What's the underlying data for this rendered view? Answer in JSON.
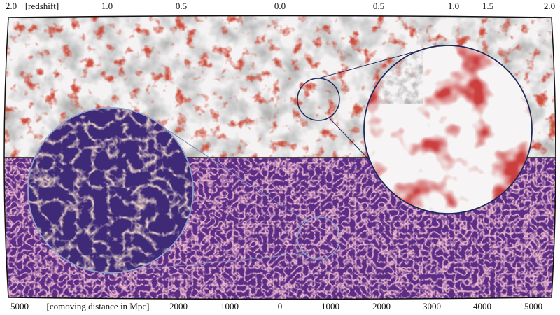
{
  "top_axis": {
    "labels": [
      "2.0",
      "[redshift]",
      "1.0",
      "0.5",
      "0.0",
      "0.5",
      "1.0",
      "1.5",
      "2.0"
    ]
  },
  "bottom_axis": {
    "labels": [
      "5000",
      "[comoving distance in Mpc]",
      "2000",
      "1000",
      "0",
      "1000",
      "2000",
      "3000",
      "4000",
      "5000"
    ]
  }
}
